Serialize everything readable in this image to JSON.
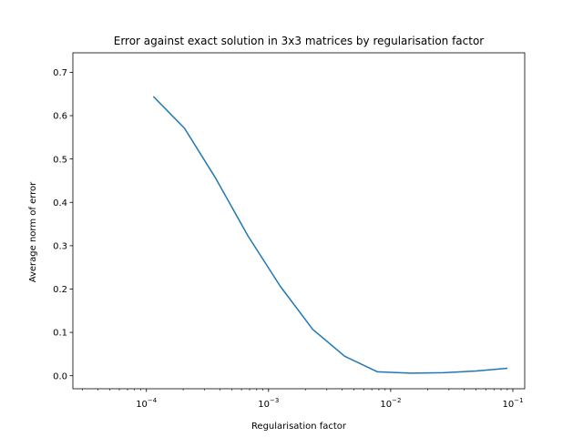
{
  "chart_data": {
    "type": "line",
    "title": "Error against exact solution in 3x3 matrices by regularisation factor",
    "xlabel": "Regularisation factor",
    "ylabel": "Average norm of error",
    "x_scale": "log",
    "xlim": [
      2.5e-05,
      0.125
    ],
    "ylim": [
      -0.03,
      0.745
    ],
    "x_ticks": [
      {
        "value": 0.0001,
        "base": "10",
        "exp": "−4"
      },
      {
        "value": 0.001,
        "base": "10",
        "exp": "−3"
      },
      {
        "value": 0.01,
        "base": "10",
        "exp": "−2"
      },
      {
        "value": 0.1,
        "base": "10",
        "exp": "−1"
      }
    ],
    "y_ticks": [
      "0.0",
      "0.1",
      "0.2",
      "0.3",
      "0.4",
      "0.5",
      "0.6",
      "0.7"
    ],
    "grid": false,
    "series": [
      {
        "color": "#1f77b4",
        "x": [
          0.000115,
          0.000205,
          0.00037,
          0.00068,
          0.00125,
          0.0023,
          0.0042,
          0.0078,
          0.0145,
          0.027,
          0.05,
          0.089
        ],
        "y": [
          0.643,
          0.571,
          0.455,
          0.322,
          0.206,
          0.107,
          0.045,
          0.009,
          0.006,
          0.007,
          0.011,
          0.017
        ]
      }
    ]
  }
}
